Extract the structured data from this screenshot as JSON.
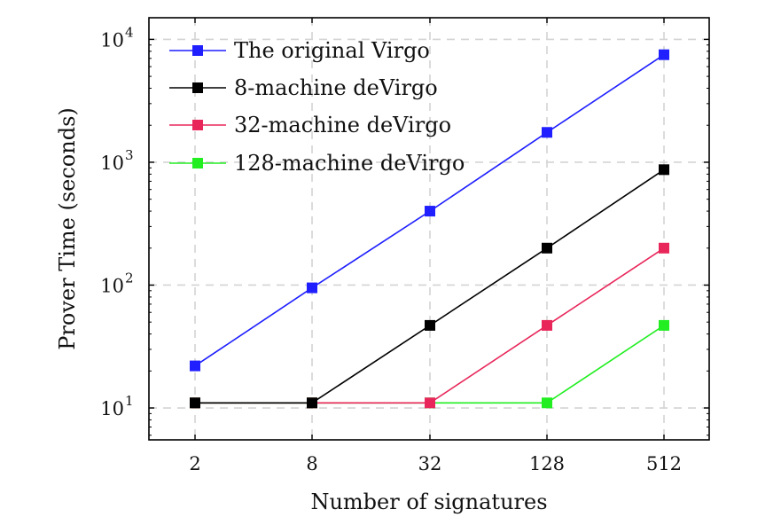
{
  "chart_data": {
    "type": "line",
    "xscale": "log2",
    "yscale": "log10",
    "x": [
      2,
      8,
      32,
      128,
      512
    ],
    "xticks": [
      "2",
      "8",
      "32",
      "128",
      "512"
    ],
    "yticks": [
      {
        "value": 10,
        "base": "10",
        "exp": "1"
      },
      {
        "value": 100,
        "base": "10",
        "exp": "2"
      },
      {
        "value": 1000,
        "base": "10",
        "exp": "3"
      },
      {
        "value": 10000,
        "base": "10",
        "exp": "4"
      }
    ],
    "xlabel": "Number of signatures",
    "ylabel": "Prover Time (seconds)",
    "ylim": [
      5.5,
      15000
    ],
    "grid": true,
    "legend_position": "top-left",
    "series": [
      {
        "name": "The original Virgo",
        "color": "#1f1fff",
        "values": [
          22,
          95,
          400,
          1750,
          7500
        ]
      },
      {
        "name": "8-machine deVirgo",
        "color": "#000000",
        "values": [
          11,
          11,
          47,
          200,
          870
        ]
      },
      {
        "name": "32-machine deVirgo",
        "color": "#e8265a",
        "values": [
          11,
          11,
          11,
          47,
          200
        ]
      },
      {
        "name": "128-machine deVirgo",
        "color": "#22ee22",
        "values": [
          11,
          11,
          11,
          11,
          47
        ]
      }
    ]
  }
}
